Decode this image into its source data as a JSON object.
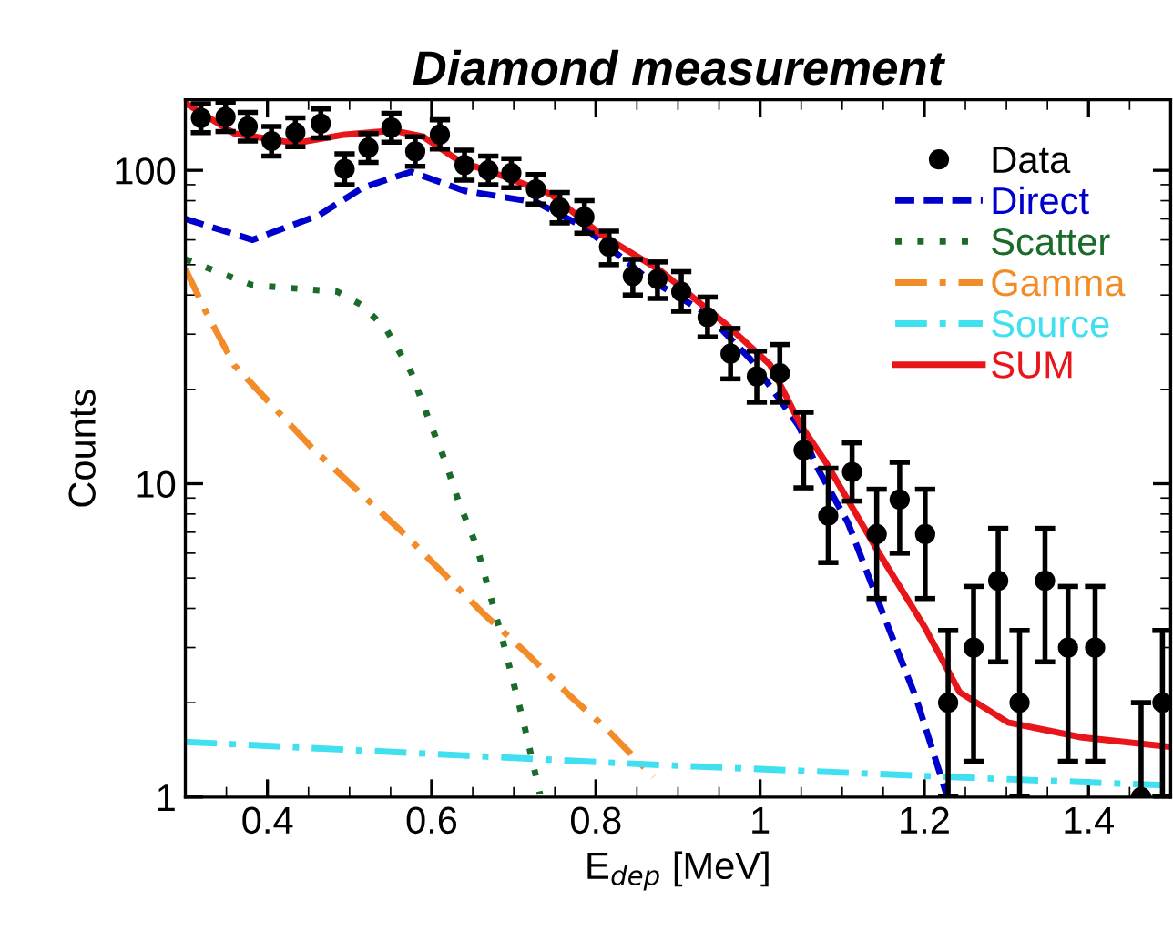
{
  "chart_data": {
    "type": "line",
    "title": "Diamond measurement",
    "xlabel": "E$_{dep}$ [MeV]",
    "ylabel": "Counts",
    "log": "y",
    "xlim": [
      0.3,
      1.5
    ],
    "ylim": [
      1,
      168
    ],
    "xticks": [
      0.4,
      0.6,
      0.8,
      1,
      1.2,
      1.4
    ],
    "yticks": [
      1,
      10,
      100
    ],
    "grid": false,
    "legend": "top right",
    "series": [
      {
        "name": "Data",
        "type": "scatter",
        "color": "#000000",
        "marker": "circle",
        "x": [
          0.319,
          0.349,
          0.376,
          0.405,
          0.434,
          0.465,
          0.494,
          0.523,
          0.551,
          0.58,
          0.61,
          0.64,
          0.669,
          0.697,
          0.727,
          0.756,
          0.786,
          0.816,
          0.845,
          0.875,
          0.904,
          0.936,
          0.964,
          0.996,
          1.024,
          1.053,
          1.083,
          1.112,
          1.142,
          1.17,
          1.201,
          1.229,
          1.26,
          1.29,
          1.316,
          1.347,
          1.375,
          1.408,
          1.464,
          1.49
        ],
        "values": [
          147,
          148,
          138,
          124,
          132,
          141,
          101,
          118,
          137,
          115,
          130,
          104,
          100,
          98,
          87,
          76,
          71,
          57,
          46,
          45,
          41,
          34,
          26,
          22,
          22.5,
          12.8,
          7.9,
          10.9,
          6.9,
          8.9,
          6.9,
          2,
          3,
          4.9,
          2,
          4.9,
          3,
          3,
          1,
          2
        ],
        "errors": [
          [
            132,
            163
          ],
          [
            133,
            165
          ],
          [
            124,
            153
          ],
          [
            111,
            138
          ],
          [
            119,
            147
          ],
          [
            127,
            157
          ],
          [
            90,
            113
          ],
          [
            106,
            131
          ],
          [
            123,
            152
          ],
          [
            103,
            128
          ],
          [
            117,
            145
          ],
          [
            93,
            116
          ],
          [
            90,
            111
          ],
          [
            88,
            109
          ],
          [
            78,
            97
          ],
          [
            68,
            85
          ],
          [
            63,
            80
          ],
          [
            50,
            64
          ],
          [
            40,
            52
          ],
          [
            39,
            51
          ],
          [
            35.5,
            47.5
          ],
          [
            29.4,
            39.4
          ],
          [
            21.6,
            31.3
          ],
          [
            18.2,
            26.5
          ],
          [
            18.2,
            27.8
          ],
          [
            9.7,
            16.9
          ],
          [
            5.6,
            11.2
          ],
          [
            8.8,
            13.5
          ],
          [
            4.3,
            9.6
          ],
          [
            6,
            11.7
          ],
          [
            4.3,
            9.6
          ],
          [
            1,
            3.4
          ],
          [
            1.3,
            4.7
          ],
          [
            2.7,
            7.2
          ],
          [
            1,
            3.4
          ],
          [
            2.7,
            7.2
          ],
          [
            1.3,
            4.7
          ],
          [
            1.3,
            4.7
          ],
          [
            1,
            2
          ],
          [
            1,
            3.4
          ]
        ]
      },
      {
        "name": "Direct",
        "color": "#0000cc",
        "line_style": "dashed",
        "x": [
          0.3,
          0.382,
          0.463,
          0.516,
          0.575,
          0.64,
          0.728,
          0.785,
          0.859,
          0.934,
          0.988,
          1.047,
          1.07,
          1.107,
          1.144,
          1.19,
          1.227
        ],
        "values": [
          70,
          60,
          72,
          88,
          99,
          86,
          79,
          66,
          46,
          35,
          25,
          15.3,
          11.2,
          7.5,
          4.2,
          2.07,
          1.02
        ]
      },
      {
        "name": "Scatter",
        "color": "#1a6b2a",
        "line_style": "dotted",
        "x": [
          0.3,
          0.382,
          0.485,
          0.516,
          0.545,
          0.575,
          0.597,
          0.617,
          0.634,
          0.655,
          0.686,
          0.712,
          0.732
        ],
        "values": [
          52,
          43,
          41,
          37,
          31,
          22.7,
          15.9,
          11.7,
          8.6,
          6.3,
          3.2,
          1.73,
          1.02
        ]
      },
      {
        "name": "Gamma",
        "color": "#f28c28",
        "line_style": "dashdot",
        "x": [
          0.3,
          0.325,
          0.36,
          0.457,
          0.501,
          0.567,
          0.663,
          0.715,
          0.767,
          0.812,
          0.87
        ],
        "values": [
          48.5,
          35.4,
          23.8,
          12.8,
          10,
          6.9,
          3.85,
          2.89,
          2.12,
          1.66,
          1.16
        ]
      },
      {
        "name": "Source",
        "color": "#40e0f0",
        "line_style": "dashdot",
        "x": [
          0.3,
          0.865,
          1.227,
          1.495
        ],
        "values": [
          1.5,
          1.27,
          1.16,
          1.09
        ]
      },
      {
        "name": "SUM",
        "color": "#e8161b",
        "line_style": "solid",
        "x": [
          0.3,
          0.36,
          0.434,
          0.494,
          0.553,
          0.59,
          0.634,
          0.686,
          0.745,
          0.804,
          0.878,
          0.9,
          0.96,
          1.012,
          1.05,
          1.08,
          1.14,
          1.2,
          1.243,
          1.302,
          1.392,
          1.495
        ],
        "values": [
          164,
          131,
          122,
          130,
          134,
          128,
          107,
          96,
          84,
          63,
          48,
          43,
          32,
          24,
          15.3,
          11.7,
          6.3,
          3.5,
          2.16,
          1.73,
          1.55,
          1.45
        ]
      }
    ]
  }
}
